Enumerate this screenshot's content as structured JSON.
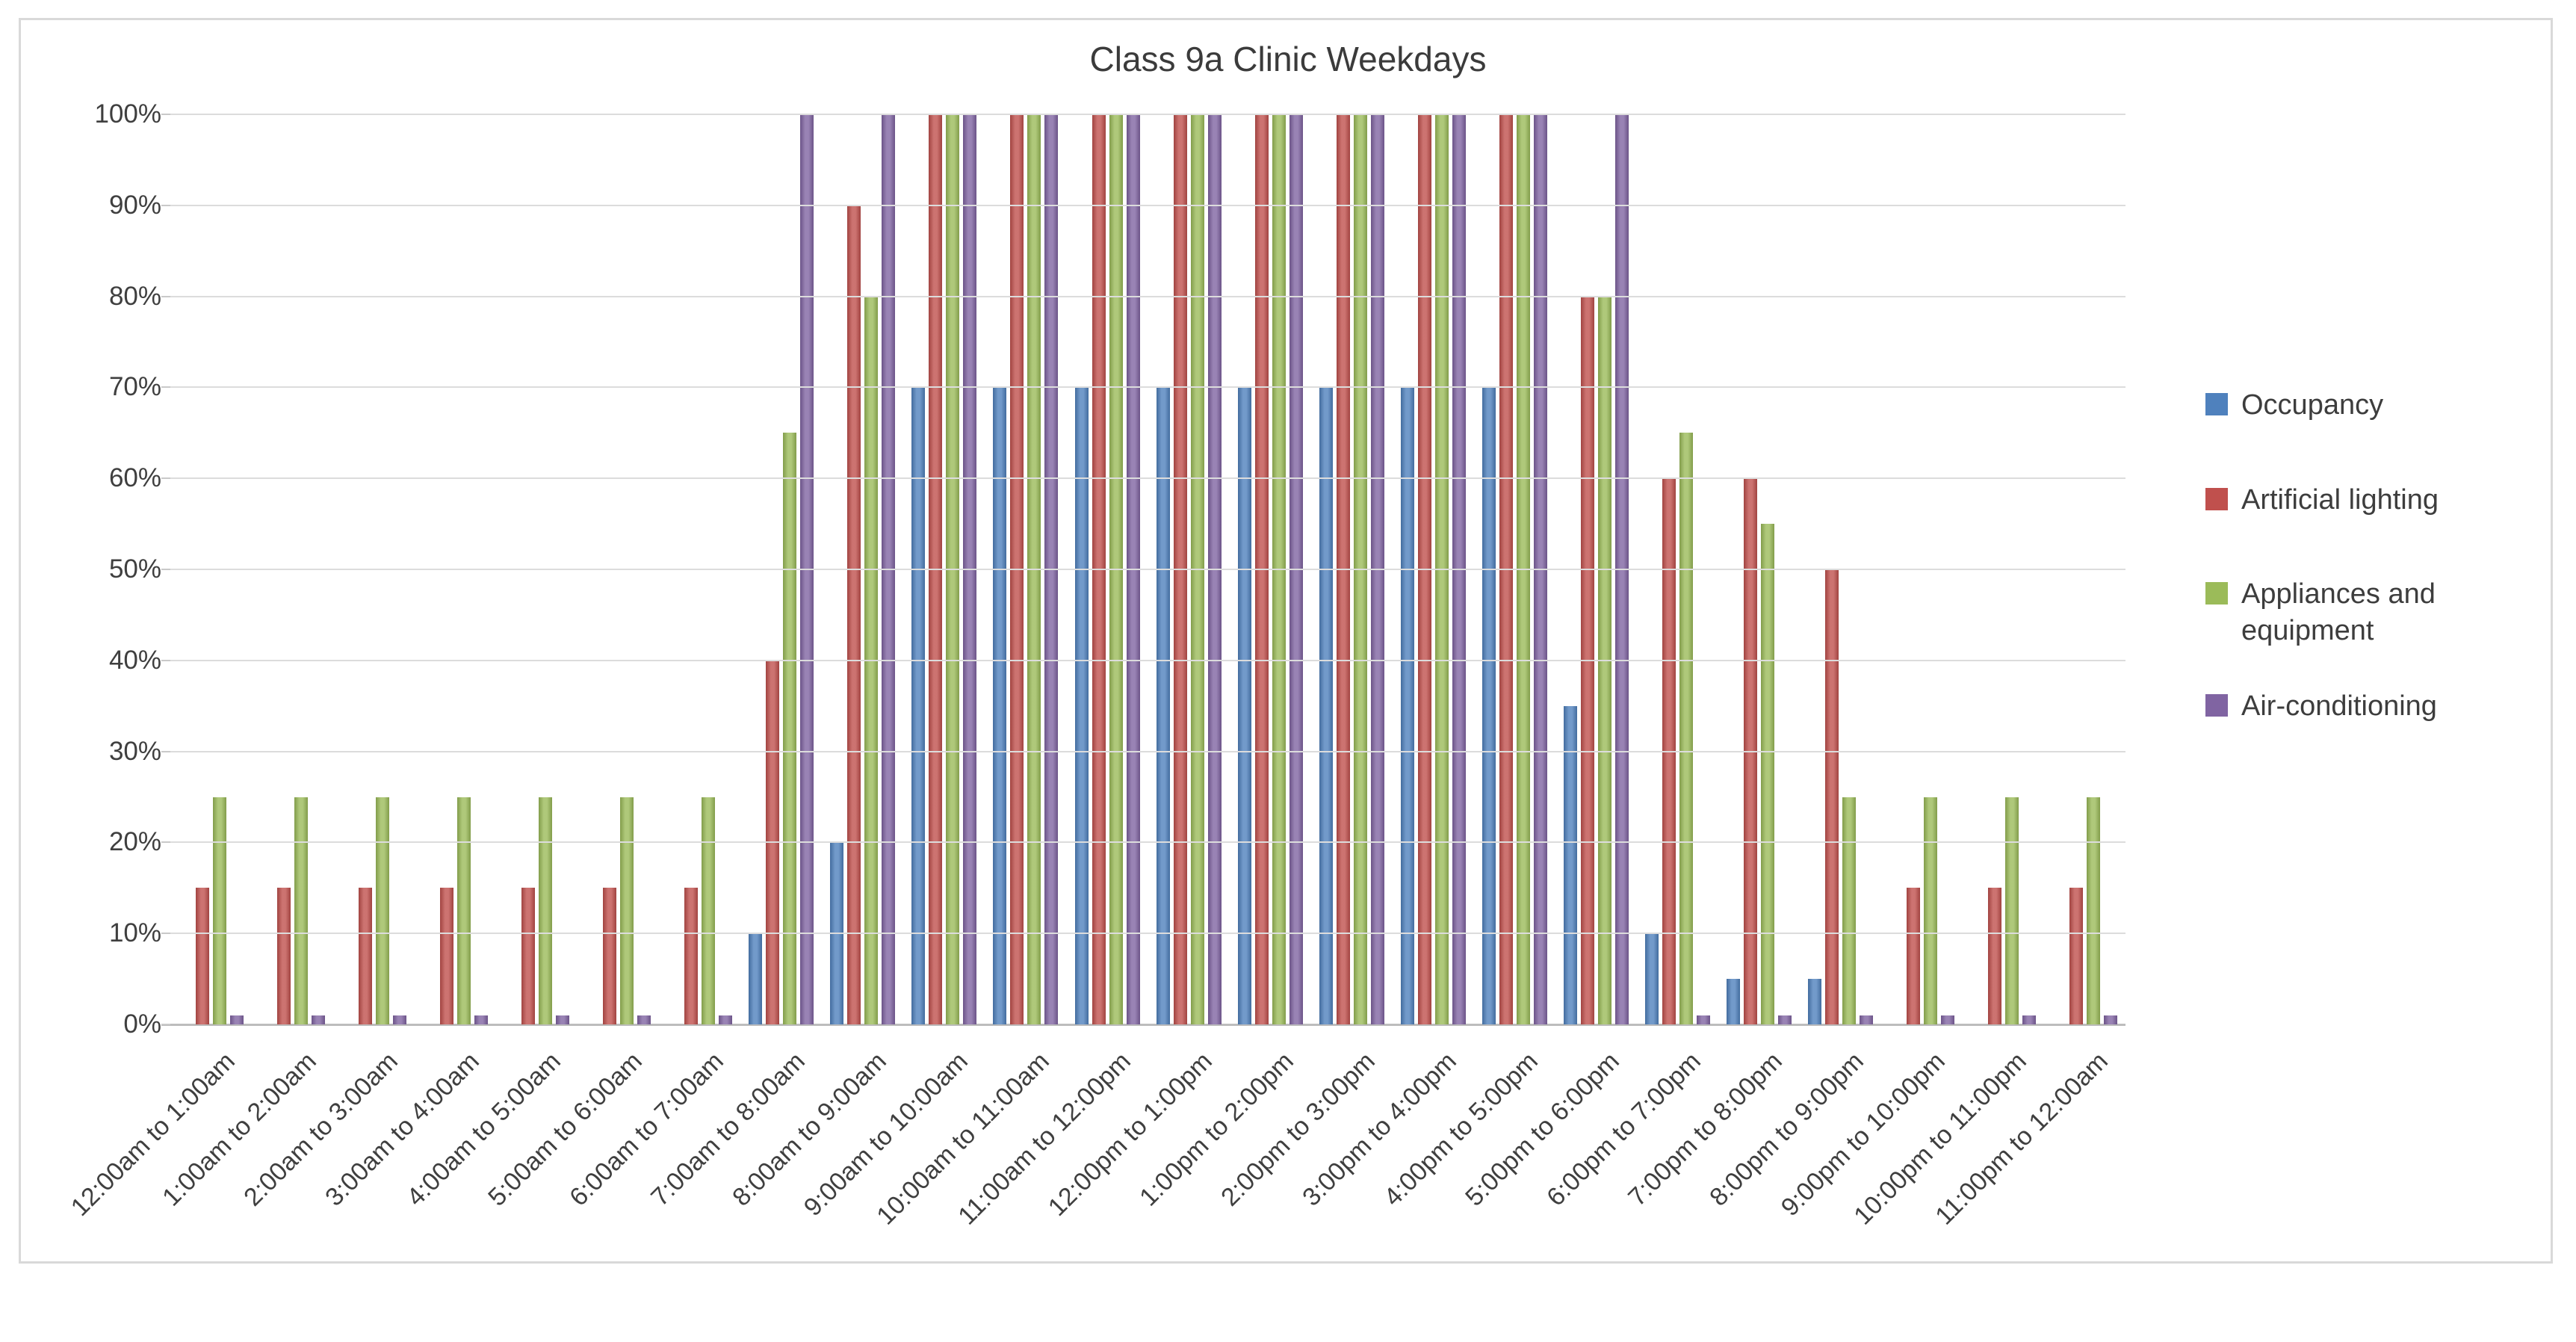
{
  "title": "Class 9a Clinic Weekdays",
  "style": {
    "frame_border_color": "#d9d9d9",
    "background": "#ffffff",
    "gridline_color": "#dcdcdc",
    "axis_line_color": "#bdbdbd",
    "text_color": "#3f3f3f"
  },
  "chart_data": {
    "type": "bar",
    "title": "Class 9a Clinic Weekdays",
    "xlabel": "",
    "ylabel": "",
    "ylim": [
      0,
      100
    ],
    "grid": true,
    "legend_position": "right",
    "y_ticks": [
      "0%",
      "10%",
      "20%",
      "30%",
      "40%",
      "50%",
      "60%",
      "70%",
      "80%",
      "90%",
      "100%"
    ],
    "categories": [
      "12:00am to 1:00am",
      "1:00am to 2:00am",
      "2:00am to 3:00am",
      "3:00am to 4:00am",
      "4:00am to 5:00am",
      "5:00am to 6:00am",
      "6:00am to 7:00am",
      "7:00am to 8:00am",
      "8:00am to 9:00am",
      "9:00am to 10:00am",
      "10:00am to 11:00am",
      "11:00am to 12:00pm",
      "12:00pm to 1:00pm",
      "1:00pm to 2:00pm",
      "2:00pm to 3:00pm",
      "3:00pm to 4:00pm",
      "4:00pm to 5:00pm",
      "5:00pm to 6:00pm",
      "6:00pm to 7:00pm",
      "7:00pm to 8:00pm",
      "8:00pm to 9:00pm",
      "9:00pm to 10:00pm",
      "10:00pm to 11:00pm",
      "11:00pm to 12:00am"
    ],
    "series": [
      {
        "name": "Occupancy",
        "color": "#4F81BD",
        "values": [
          0,
          0,
          0,
          0,
          0,
          0,
          0,
          10,
          20,
          70,
          70,
          70,
          70,
          70,
          70,
          70,
          70,
          35,
          10,
          5,
          5,
          0,
          0,
          0
        ]
      },
      {
        "name": "Artificial lighting",
        "color": "#C0504D",
        "values": [
          15,
          15,
          15,
          15,
          15,
          15,
          15,
          40,
          90,
          100,
          100,
          100,
          100,
          100,
          100,
          100,
          100,
          80,
          60,
          60,
          50,
          15,
          15,
          15
        ]
      },
      {
        "name": "Appliances and equipment",
        "color": "#9BBB59",
        "values": [
          25,
          25,
          25,
          25,
          25,
          25,
          25,
          65,
          80,
          100,
          100,
          100,
          100,
          100,
          100,
          100,
          100,
          80,
          65,
          55,
          25,
          25,
          25,
          25
        ]
      },
      {
        "name": "Air-conditioning",
        "color": "#8064A2",
        "values": [
          1,
          1,
          1,
          1,
          1,
          1,
          1,
          100,
          100,
          100,
          100,
          100,
          100,
          100,
          100,
          100,
          100,
          100,
          1,
          1,
          1,
          1,
          1,
          1
        ]
      }
    ]
  }
}
